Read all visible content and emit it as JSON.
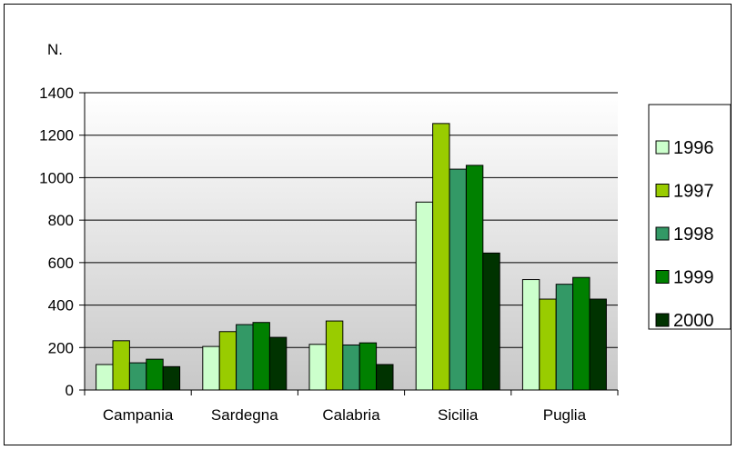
{
  "chart_data": {
    "type": "bar",
    "title": "",
    "ylabel": "N.",
    "xlabel": "",
    "categories": [
      "Campania",
      "Sardegna",
      "Calabria",
      "Sicilia",
      "Puglia"
    ],
    "ylim": [
      0,
      1400
    ],
    "yticks": [
      "0",
      "200",
      "400",
      "600",
      "800",
      "1000",
      "1200",
      "1400"
    ],
    "grid": true,
    "legend_position": "right",
    "series": [
      {
        "name": "1996",
        "color": "#ccffcc",
        "values": [
          120,
          205,
          215,
          885,
          520
        ]
      },
      {
        "name": "1997",
        "color": "#99cc00",
        "values": [
          232,
          275,
          325,
          1255,
          428
        ]
      },
      {
        "name": "1998",
        "color": "#339966",
        "values": [
          128,
          308,
          212,
          1040,
          498
        ]
      },
      {
        "name": "1999",
        "color": "#008000",
        "values": [
          145,
          318,
          222,
          1058,
          530
        ]
      },
      {
        "name": "2000",
        "color": "#003300",
        "values": [
          110,
          248,
          120,
          645,
          428
        ]
      }
    ]
  }
}
